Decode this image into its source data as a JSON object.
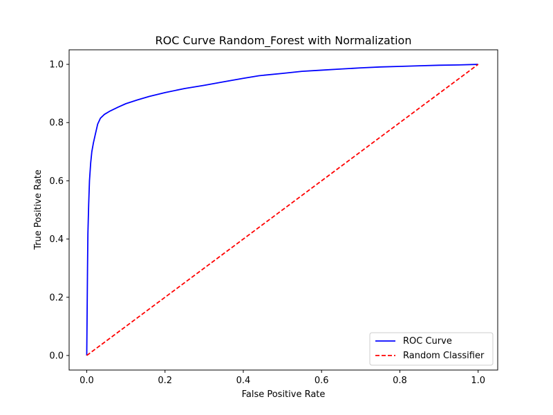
{
  "chart_data": {
    "type": "line",
    "title": "ROC Curve Random_Forest with Normalization",
    "xlabel": "False Positive Rate",
    "ylabel": "True Positive Rate",
    "xlim": [
      -0.045,
      1.05
    ],
    "ylim": [
      -0.05,
      1.05
    ],
    "xticks": [
      0.0,
      0.2,
      0.4,
      0.6,
      0.8,
      1.0
    ],
    "yticks": [
      0.0,
      0.2,
      0.4,
      0.6,
      0.8,
      1.0
    ],
    "xtick_labels": [
      "0.0",
      "0.2",
      "0.4",
      "0.6",
      "0.8",
      "1.0"
    ],
    "ytick_labels": [
      "0.0",
      "0.2",
      "0.4",
      "0.6",
      "0.8",
      "1.0"
    ],
    "grid": false,
    "legend_position": "lower-right",
    "series": [
      {
        "name": "ROC Curve",
        "color": "#0000ff",
        "line_style": "solid",
        "x": [
          0.0,
          0.001,
          0.002,
          0.003,
          0.005,
          0.007,
          0.01,
          0.013,
          0.017,
          0.022,
          0.028,
          0.035,
          0.045,
          0.06,
          0.08,
          0.1,
          0.13,
          0.16,
          0.2,
          0.25,
          0.3,
          0.35,
          0.4,
          0.44,
          0.5,
          0.55,
          0.6,
          0.65,
          0.7,
          0.75,
          0.8,
          0.85,
          0.9,
          0.95,
          1.0
        ],
        "y": [
          0.0,
          0.15,
          0.3,
          0.42,
          0.52,
          0.6,
          0.66,
          0.7,
          0.73,
          0.76,
          0.795,
          0.815,
          0.828,
          0.84,
          0.853,
          0.865,
          0.878,
          0.89,
          0.903,
          0.917,
          0.928,
          0.94,
          0.952,
          0.961,
          0.969,
          0.976,
          0.98,
          0.984,
          0.988,
          0.991,
          0.993,
          0.995,
          0.997,
          0.998,
          1.0
        ]
      },
      {
        "name": "Random Classifier",
        "color": "#ff0000",
        "line_style": "dashed",
        "x": [
          0.0,
          1.0
        ],
        "y": [
          0.0,
          1.0
        ]
      }
    ]
  }
}
